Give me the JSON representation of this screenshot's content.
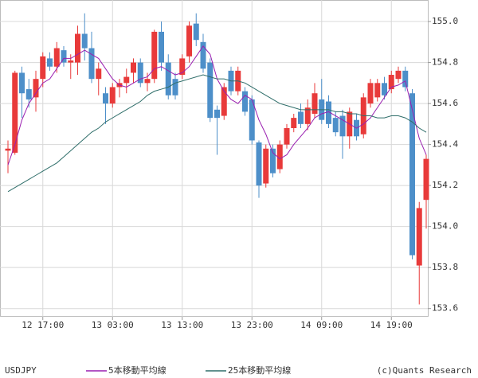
{
  "chart_data": {
    "type": "candlestick",
    "symbol": "USDJPY",
    "credit": "(c)Quants Research",
    "categories": [
      null,
      null,
      null,
      null,
      null,
      "12 17:00",
      null,
      null,
      null,
      null,
      null,
      null,
      null,
      null,
      null,
      "13 03:00",
      null,
      null,
      null,
      null,
      null,
      null,
      null,
      null,
      null,
      "13 13:00",
      null,
      null,
      null,
      null,
      null,
      null,
      null,
      null,
      null,
      "13 23:00",
      null,
      null,
      null,
      null,
      null,
      null,
      null,
      null,
      null,
      "14 09:00",
      null,
      null,
      null,
      null,
      null,
      null,
      null,
      null,
      null,
      "14 19:00",
      null,
      null,
      null,
      null,
      null
    ],
    "open": [
      154.37,
      154.36,
      154.75,
      154.67,
      154.63,
      154.72,
      154.82,
      154.78,
      154.86,
      154.8,
      154.8,
      154.94,
      154.87,
      154.72,
      154.65,
      154.6,
      154.68,
      154.7,
      154.75,
      154.8,
      154.7,
      154.72,
      154.95,
      154.8,
      154.72,
      154.74,
      154.83,
      154.99,
      154.9,
      154.8,
      154.57,
      154.54,
      154.76,
      154.66,
      154.66,
      154.62,
      154.41,
      154.21,
      154.38,
      154.28,
      154.4,
      154.48,
      154.56,
      154.5,
      154.55,
      154.62,
      154.61,
      154.53,
      154.54,
      154.44,
      154.52,
      154.45,
      154.6,
      154.63,
      154.7,
      154.67,
      154.72,
      154.76,
      154.65,
      153.81,
      154.13
    ],
    "high": [
      154.42,
      154.76,
      154.78,
      154.72,
      154.76,
      154.85,
      154.85,
      154.9,
      154.88,
      154.84,
      154.98,
      155.04,
      154.95,
      154.8,
      154.68,
      154.7,
      154.72,
      154.77,
      154.82,
      154.82,
      154.75,
      154.96,
      155.0,
      154.84,
      154.75,
      154.84,
      155.0,
      155.04,
      154.94,
      154.82,
      154.59,
      154.7,
      154.78,
      154.78,
      154.68,
      154.64,
      154.42,
      154.4,
      154.4,
      154.42,
      154.5,
      154.55,
      154.6,
      154.62,
      154.7,
      154.72,
      154.64,
      154.56,
      154.57,
      154.58,
      154.55,
      154.65,
      154.72,
      154.72,
      154.73,
      154.76,
      154.78,
      154.78,
      154.67,
      154.12,
      154.35
    ],
    "low": [
      154.26,
      154.35,
      154.53,
      154.58,
      154.56,
      154.68,
      154.76,
      154.75,
      154.78,
      154.72,
      154.74,
      154.81,
      154.7,
      154.64,
      154.5,
      154.58,
      154.63,
      154.65,
      154.7,
      154.68,
      154.66,
      154.7,
      154.76,
      154.62,
      154.62,
      154.72,
      154.8,
      154.88,
      154.75,
      154.51,
      154.35,
      154.52,
      154.64,
      154.64,
      154.54,
      154.4,
      154.14,
      154.19,
      154.24,
      154.26,
      154.38,
      154.46,
      154.48,
      154.47,
      154.53,
      154.5,
      154.48,
      154.44,
      154.33,
      154.38,
      154.42,
      154.43,
      154.58,
      154.61,
      154.62,
      154.65,
      154.7,
      154.66,
      153.84,
      153.62,
      153.99
    ],
    "close": [
      154.38,
      154.75,
      154.65,
      154.62,
      154.72,
      154.83,
      154.78,
      154.87,
      154.8,
      154.81,
      154.94,
      154.87,
      154.72,
      154.77,
      154.6,
      154.68,
      154.7,
      154.73,
      154.8,
      154.7,
      154.72,
      154.95,
      154.8,
      154.64,
      154.64,
      154.82,
      154.98,
      154.91,
      154.77,
      154.53,
      154.53,
      154.68,
      154.66,
      154.76,
      154.56,
      154.42,
      154.2,
      154.38,
      154.26,
      154.4,
      154.48,
      154.53,
      154.5,
      154.58,
      154.65,
      154.52,
      154.5,
      154.46,
      154.44,
      154.56,
      154.44,
      154.63,
      154.7,
      154.7,
      154.64,
      154.74,
      154.76,
      154.68,
      153.86,
      154.09,
      154.33
    ],
    "up_color": "#e83a3a",
    "down_color": "#4d8fc9",
    "series": [
      {
        "name": "5本移動平均線",
        "color": "#9a1fb0",
        "values": [
          154.3,
          154.4,
          154.52,
          154.6,
          154.65,
          154.7,
          154.72,
          154.77,
          154.82,
          154.82,
          154.84,
          154.86,
          154.84,
          154.82,
          154.77,
          154.72,
          154.69,
          154.68,
          154.7,
          154.72,
          154.73,
          154.77,
          154.78,
          154.76,
          154.74,
          154.75,
          154.78,
          154.83,
          154.88,
          154.84,
          154.72,
          154.66,
          154.62,
          154.6,
          154.64,
          154.62,
          154.52,
          154.45,
          154.36,
          154.33,
          154.35,
          154.4,
          154.44,
          154.48,
          154.53,
          154.55,
          154.56,
          154.54,
          154.52,
          154.5,
          154.48,
          154.5,
          154.53,
          154.58,
          154.63,
          154.68,
          154.69,
          154.71,
          154.57,
          154.43,
          154.35
        ]
      },
      {
        "name": "25本移動平均線",
        "color": "#2f6e6a",
        "values": [
          154.17,
          154.19,
          154.21,
          154.23,
          154.25,
          154.27,
          154.29,
          154.31,
          154.34,
          154.37,
          154.4,
          154.43,
          154.46,
          154.48,
          154.51,
          154.53,
          154.55,
          154.57,
          154.59,
          154.61,
          154.64,
          154.66,
          154.67,
          154.68,
          154.7,
          154.71,
          154.72,
          154.73,
          154.74,
          154.73,
          154.72,
          154.72,
          154.71,
          154.71,
          154.7,
          154.68,
          154.66,
          154.64,
          154.62,
          154.6,
          154.59,
          154.58,
          154.57,
          154.57,
          154.57,
          154.57,
          154.57,
          154.56,
          154.56,
          154.55,
          154.55,
          154.54,
          154.54,
          154.53,
          154.53,
          154.54,
          154.54,
          154.53,
          154.51,
          154.48,
          154.46
        ]
      }
    ],
    "ylim": [
      153.56,
      155.105
    ],
    "yticks": [
      {
        "value": 153.6,
        "label": "153.6"
      },
      153.8,
      {
        "value": 154.0,
        "label": "154.0"
      },
      154.2,
      154.4,
      154.6,
      154.8,
      {
        "value": 155.0,
        "label": "155.0"
      }
    ],
    "grid": true
  }
}
